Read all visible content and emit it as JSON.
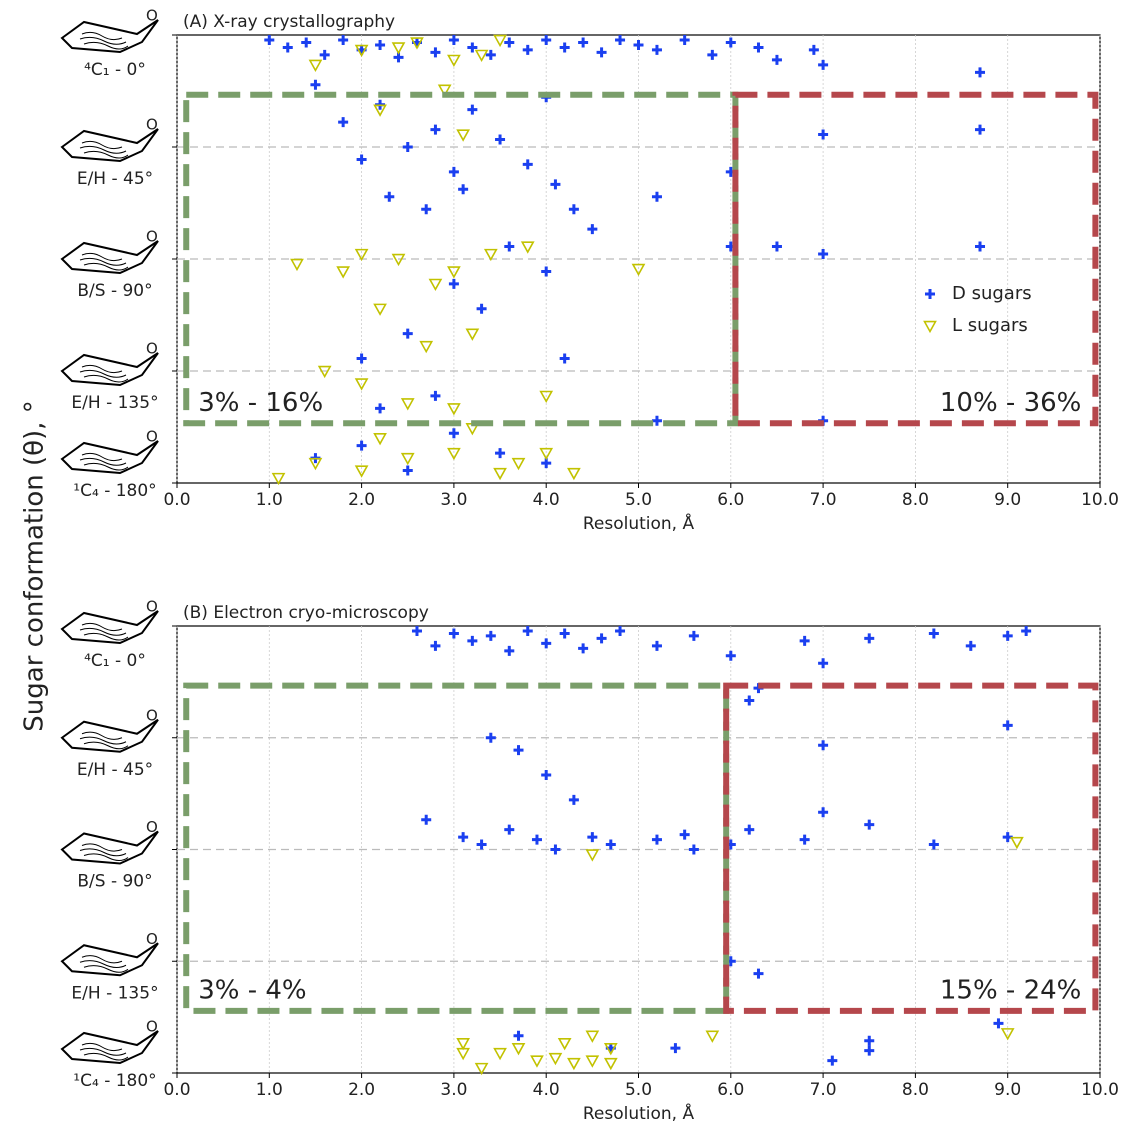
{
  "chart_data": [
    {
      "type": "scatter",
      "title": "(A) X-ray crystallography",
      "xlabel": "Resolution, Å",
      "ylabel": "Sugar conformation (θ), °",
      "xlim": [
        0,
        10
      ],
      "ylim": [
        180,
        0
      ],
      "xticks": [
        {
          "value": 0,
          "label": "0.0"
        },
        {
          "value": 1,
          "label": "1.0"
        },
        {
          "value": 2,
          "label": "2.0"
        },
        {
          "value": 3,
          "label": "3.0"
        },
        {
          "value": 4,
          "label": "4.0"
        },
        {
          "value": 5,
          "label": "5.0"
        },
        {
          "value": 6,
          "label": "6.0"
        },
        {
          "value": 7,
          "label": "7.0"
        },
        {
          "value": 8,
          "label": "8.0"
        },
        {
          "value": 9,
          "label": "9.0"
        },
        {
          "value": 10,
          "label": "10.0"
        }
      ],
      "yticks": [
        {
          "value": 0,
          "label": "⁴C₁ - 0°"
        },
        {
          "value": 45,
          "label": "E/H - 45°"
        },
        {
          "value": 90,
          "label": "B/S - 90°"
        },
        {
          "value": 135,
          "label": "E/H - 135°"
        },
        {
          "value": 180,
          "label": "¹C₄ - 180°"
        }
      ],
      "grid": true,
      "legend": "center right",
      "series": [
        {
          "name": "D sugars",
          "color": "#1a3ff0",
          "marker": "plus",
          "x": [
            1.0,
            1.2,
            1.4,
            1.6,
            1.8,
            2.0,
            2.2,
            2.4,
            2.6,
            2.8,
            3.0,
            3.2,
            3.4,
            3.6,
            3.8,
            4.0,
            4.2,
            4.4,
            4.6,
            4.8,
            5.0,
            5.2,
            5.5,
            5.8,
            6.0,
            6.3,
            6.5,
            6.9,
            7.0,
            8.7,
            1.5,
            1.8,
            2.0,
            2.2,
            2.5,
            2.8,
            3.0,
            3.2,
            3.5,
            3.8,
            4.0,
            4.1,
            2.3,
            2.7,
            3.1,
            4.3,
            4.5,
            3.6,
            4.0,
            3.0,
            2.5,
            2.0,
            3.3,
            4.2,
            5.2,
            5.2,
            6.0,
            6.0,
            6.5,
            7.0,
            8.7,
            7.0,
            7.0,
            8.7,
            1.5,
            2.0,
            2.5,
            3.0,
            3.5,
            4.0,
            2.2,
            2.8
          ],
          "values": [
            2,
            5,
            3,
            8,
            2,
            6,
            4,
            9,
            3,
            7,
            2,
            5,
            8,
            3,
            6,
            2,
            5,
            3,
            7,
            2,
            4,
            6,
            2,
            8,
            3,
            5,
            10,
            6,
            12,
            15,
            20,
            35,
            50,
            28,
            45,
            38,
            55,
            30,
            42,
            52,
            25,
            60,
            65,
            70,
            62,
            70,
            78,
            85,
            95,
            100,
            120,
            130,
            110,
            130,
            65,
            155,
            55,
            85,
            85,
            88,
            85,
            155,
            40,
            38,
            170,
            165,
            175,
            160,
            168,
            172,
            150,
            145
          ]
        },
        {
          "name": "L sugars",
          "color": "#c2c200",
          "marker": "triangle",
          "x": [
            1.5,
            2.0,
            2.4,
            2.6,
            3.0,
            3.3,
            3.5,
            2.2,
            2.9,
            3.1,
            1.3,
            1.8,
            2.0,
            2.4,
            2.8,
            3.0,
            3.4,
            3.8,
            5.0,
            2.2,
            2.7,
            3.2,
            1.6,
            2.0,
            2.5,
            3.0,
            4.0,
            1.1,
            1.5,
            2.0,
            2.5,
            3.0,
            3.5,
            3.2,
            2.2,
            4.0,
            4.3,
            3.7
          ],
          "values": [
            12,
            6,
            5,
            3,
            10,
            8,
            2,
            30,
            22,
            40,
            92,
            95,
            88,
            90,
            100,
            95,
            88,
            85,
            94,
            110,
            125,
            120,
            135,
            140,
            148,
            150,
            145,
            178,
            172,
            175,
            170,
            168,
            176,
            158,
            162,
            168,
            176,
            172
          ]
        }
      ],
      "regions": [
        {
          "label": "3% - 16%",
          "color": "#7a9e6a",
          "xlim": [
            0.1,
            6.05
          ],
          "ylim": [
            156,
            24
          ]
        },
        {
          "label": "10% - 36%",
          "color": "#b5474c",
          "xlim": [
            6.05,
            9.95
          ],
          "ylim": [
            156,
            24
          ]
        }
      ]
    },
    {
      "type": "scatter",
      "title": "(B) Electron cryo-microscopy",
      "xlabel": "Resolution, Å",
      "xlim": [
        0,
        10
      ],
      "ylim": [
        180,
        0
      ],
      "xticks": [
        {
          "value": 0,
          "label": "0.0"
        },
        {
          "value": 1,
          "label": "1.0"
        },
        {
          "value": 2,
          "label": "2.0"
        },
        {
          "value": 3,
          "label": "3.0"
        },
        {
          "value": 4,
          "label": "4.0"
        },
        {
          "value": 5,
          "label": "5.0"
        },
        {
          "value": 6,
          "label": "6.0"
        },
        {
          "value": 7,
          "label": "7.0"
        },
        {
          "value": 8,
          "label": "8.0"
        },
        {
          "value": 9,
          "label": "9.0"
        },
        {
          "value": 10,
          "label": "10.0"
        }
      ],
      "yticks": [
        {
          "value": 0,
          "label": "⁴C₁ - 0°"
        },
        {
          "value": 45,
          "label": "E/H - 45°"
        },
        {
          "value": 90,
          "label": "B/S - 90°"
        },
        {
          "value": 135,
          "label": "E/H - 135°"
        },
        {
          "value": 180,
          "label": "¹C₄ - 180°"
        }
      ],
      "grid": true,
      "series": [
        {
          "name": "D sugars",
          "color": "#1a3ff0",
          "marker": "plus",
          "x": [
            2.6,
            2.8,
            3.0,
            3.2,
            3.4,
            3.6,
            3.8,
            4.0,
            4.2,
            4.4,
            4.6,
            4.8,
            5.2,
            5.6,
            6.0,
            6.3,
            6.8,
            7.0,
            7.5,
            8.2,
            8.6,
            9.0,
            9.2,
            2.7,
            3.1,
            3.3,
            3.6,
            3.9,
            4.1,
            4.3,
            4.5,
            4.7,
            5.2,
            5.5,
            5.6,
            6.0,
            6.2,
            6.8,
            7.0,
            7.5,
            8.2,
            9.0,
            3.7,
            4.0,
            3.4,
            6.2,
            9.0,
            7.0,
            3.7,
            4.7,
            5.4,
            7.1,
            7.5,
            7.5,
            8.9,
            6.0,
            6.3
          ],
          "values": [
            2,
            8,
            3,
            6,
            4,
            10,
            2,
            7,
            3,
            9,
            5,
            2,
            8,
            4,
            12,
            25,
            6,
            15,
            5,
            3,
            8,
            4,
            2,
            78,
            85,
            88,
            82,
            86,
            90,
            70,
            85,
            88,
            86,
            84,
            90,
            88,
            82,
            86,
            75,
            80,
            88,
            85,
            50,
            60,
            45,
            30,
            40,
            48,
            165,
            170,
            170,
            175,
            171,
            167,
            160,
            135,
            140
          ]
        },
        {
          "name": "L sugars",
          "color": "#c2c200",
          "marker": "triangle",
          "x": [
            3.1,
            3.1,
            3.3,
            3.5,
            3.7,
            3.9,
            4.1,
            4.2,
            4.3,
            4.5,
            4.5,
            4.7,
            4.7,
            5.8,
            9.0,
            9.1,
            4.5
          ],
          "values": [
            168,
            172,
            178,
            172,
            170,
            175,
            174,
            168,
            176,
            165,
            175,
            170,
            176,
            165,
            164,
            87,
            92
          ]
        }
      ],
      "regions": [
        {
          "label": "3% - 4%",
          "color": "#7a9e6a",
          "xlim": [
            0.1,
            5.95
          ],
          "ylim": [
            155,
            24
          ]
        },
        {
          "label": "15% - 24%",
          "color": "#b5474c",
          "xlim": [
            5.95,
            9.95
          ],
          "ylim": [
            155,
            24
          ]
        }
      ]
    }
  ]
}
